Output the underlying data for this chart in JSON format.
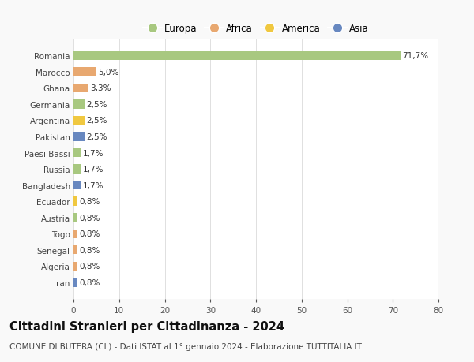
{
  "categories": [
    "Romania",
    "Marocco",
    "Ghana",
    "Germania",
    "Argentina",
    "Pakistan",
    "Paesi Bassi",
    "Russia",
    "Bangladesh",
    "Ecuador",
    "Austria",
    "Togo",
    "Senegal",
    "Algeria",
    "Iran"
  ],
  "values": [
    71.7,
    5.0,
    3.3,
    2.5,
    2.5,
    2.5,
    1.7,
    1.7,
    1.7,
    0.8,
    0.8,
    0.8,
    0.8,
    0.8,
    0.8
  ],
  "labels": [
    "71,7%",
    "5,0%",
    "3,3%",
    "2,5%",
    "2,5%",
    "2,5%",
    "1,7%",
    "1,7%",
    "1,7%",
    "0,8%",
    "0,8%",
    "0,8%",
    "0,8%",
    "0,8%",
    "0,8%"
  ],
  "bar_colors": [
    "#a8c880",
    "#e8a870",
    "#e8a870",
    "#a8c880",
    "#f0c840",
    "#6888c0",
    "#a8c880",
    "#a8c880",
    "#6888c0",
    "#f0c840",
    "#a8c880",
    "#e8a870",
    "#e8a870",
    "#e8a870",
    "#6888c0"
  ],
  "legend_labels": [
    "Europa",
    "Africa",
    "America",
    "Asia"
  ],
  "legend_colors": [
    "#a8c880",
    "#e8a870",
    "#f0c840",
    "#6888c0"
  ],
  "title": "Cittadini Stranieri per Cittadinanza - 2024",
  "subtitle": "COMUNE DI BUTERA (CL) - Dati ISTAT al 1° gennaio 2024 - Elaborazione TUTTITALIA.IT",
  "xlim": [
    0,
    80
  ],
  "xticks": [
    0,
    10,
    20,
    30,
    40,
    50,
    60,
    70,
    80
  ],
  "background_color": "#f9f9f9",
  "plot_background": "#ffffff",
  "grid_color": "#e0e0e0",
  "title_fontsize": 10.5,
  "subtitle_fontsize": 7.5,
  "tick_fontsize": 7.5,
  "label_fontsize": 7.5,
  "legend_fontsize": 8.5
}
